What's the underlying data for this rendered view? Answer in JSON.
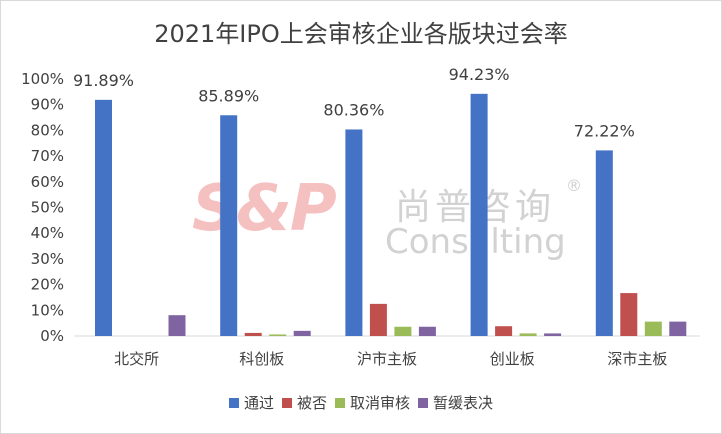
{
  "chart_data": {
    "type": "bar",
    "title": "2021年IPO上会审核企业各版块过会率",
    "categories": [
      "北交所",
      "科创板",
      "沪市主板",
      "创业板",
      "深市主板"
    ],
    "series": [
      {
        "name": "通过",
        "color": "#4472c4",
        "values": [
          91.89,
          85.89,
          80.36,
          94.23,
          72.22
        ],
        "labels": [
          "91.89%",
          "85.89%",
          "80.36%",
          "94.23%",
          "72.22%"
        ]
      },
      {
        "name": "被否",
        "color": "#c0504d",
        "values": [
          0,
          1.2,
          12.5,
          3.8,
          16.7
        ]
      },
      {
        "name": "取消审核",
        "color": "#9bbb59",
        "values": [
          0,
          0.6,
          3.6,
          1.0,
          5.6
        ]
      },
      {
        "name": "暂缓表决",
        "color": "#8064a2",
        "values": [
          8.1,
          2.0,
          3.6,
          1.0,
          5.6
        ]
      }
    ],
    "y_ticks": [
      "0%",
      "10%",
      "20%",
      "30%",
      "40%",
      "50%",
      "60%",
      "70%",
      "80%",
      "90%",
      "100%"
    ],
    "ylim": [
      0,
      100
    ],
    "grid": false,
    "legend_position": "bottom"
  },
  "watermark": {
    "logo": "S&P",
    "cn": "尚普咨询",
    "en": "Consulting",
    "reg": "®"
  }
}
